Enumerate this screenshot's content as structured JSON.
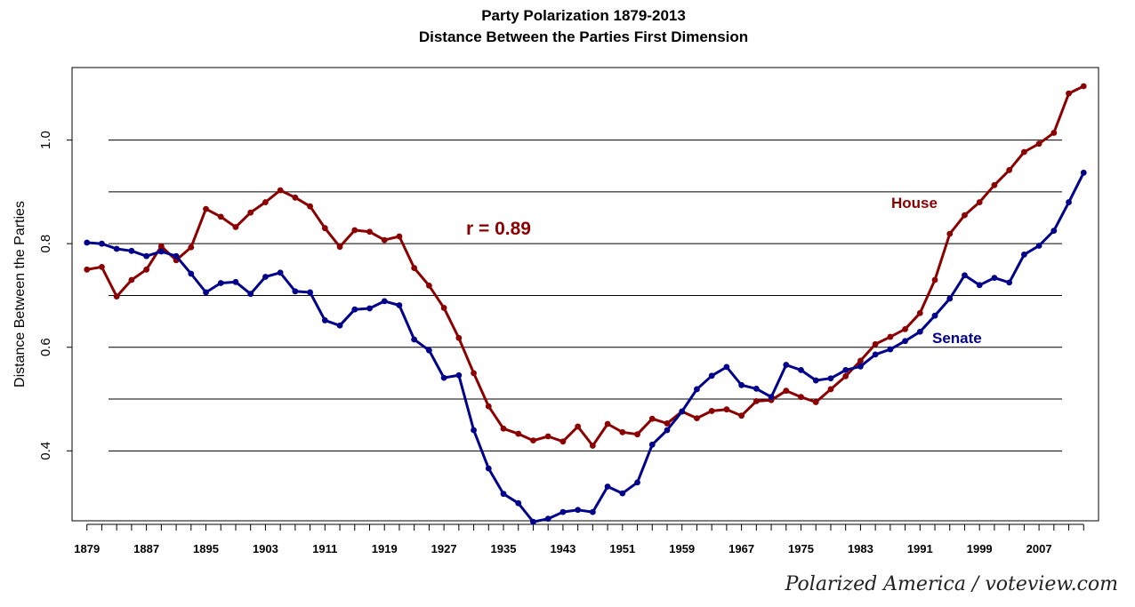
{
  "chart_data": {
    "type": "line",
    "title": "Party Polarization 1879-2013",
    "subtitle": "Distance Between the Parties First Dimension",
    "xlabel": "",
    "ylabel": "Distance Between the Parties",
    "xlim": [
      1877,
      2015
    ],
    "ylim": [
      0.265,
      1.14
    ],
    "grid": "horizontal",
    "x_ticks": [
      "1879",
      "1887",
      "1895",
      "1903",
      "1911",
      "1919",
      "1927",
      "1935",
      "1943",
      "1951",
      "1959",
      "1967",
      "1975",
      "1983",
      "1991",
      "1999",
      "2007"
    ],
    "y_ticks": [
      0.4,
      0.6,
      0.8,
      1.0
    ],
    "y_tick_labels": [
      "0.4",
      "0.6",
      "0.8",
      "1.0"
    ],
    "annotation": "r =  0.89",
    "x": [
      1879,
      1881,
      1883,
      1885,
      1887,
      1889,
      1891,
      1893,
      1895,
      1897,
      1899,
      1901,
      1903,
      1905,
      1907,
      1909,
      1911,
      1913,
      1915,
      1917,
      1919,
      1921,
      1923,
      1925,
      1927,
      1929,
      1931,
      1933,
      1935,
      1937,
      1939,
      1941,
      1943,
      1945,
      1947,
      1949,
      1951,
      1953,
      1955,
      1957,
      1959,
      1961,
      1963,
      1965,
      1967,
      1969,
      1971,
      1973,
      1975,
      1977,
      1979,
      1981,
      1983,
      1985,
      1987,
      1989,
      1991,
      1993,
      1995,
      1997,
      1999,
      2001,
      2003,
      2005,
      2007,
      2009,
      2011,
      2013
    ],
    "series": [
      {
        "name": "House",
        "color": "#8b0000",
        "values": [
          0.75,
          0.755,
          0.698,
          0.73,
          0.75,
          0.795,
          0.768,
          0.793,
          0.867,
          0.852,
          0.832,
          0.86,
          0.88,
          0.903,
          0.889,
          0.872,
          0.83,
          0.794,
          0.826,
          0.823,
          0.807,
          0.814,
          0.753,
          0.719,
          0.676,
          0.618,
          0.55,
          0.486,
          0.443,
          0.433,
          0.42,
          0.428,
          0.418,
          0.447,
          0.41,
          0.452,
          0.436,
          0.432,
          0.462,
          0.453,
          0.476,
          0.463,
          0.477,
          0.48,
          0.468,
          0.496,
          0.498,
          0.516,
          0.504,
          0.494,
          0.519,
          0.544,
          0.574,
          0.606,
          0.62,
          0.635,
          0.666,
          0.73,
          0.819,
          0.855,
          0.88,
          0.913,
          0.942,
          0.977,
          0.993,
          1.014,
          1.09,
          1.104
        ]
      },
      {
        "name": "Senate",
        "color": "#00008b",
        "values": [
          0.802,
          0.8,
          0.79,
          0.786,
          0.776,
          0.785,
          0.776,
          0.742,
          0.706,
          0.724,
          0.726,
          0.703,
          0.736,
          0.744,
          0.708,
          0.706,
          0.652,
          0.642,
          0.673,
          0.675,
          0.689,
          0.681,
          0.615,
          0.594,
          0.541,
          0.546,
          0.44,
          0.366,
          0.317,
          0.299,
          0.263,
          0.269,
          0.282,
          0.286,
          0.282,
          0.331,
          0.318,
          0.339,
          0.412,
          0.44,
          0.476,
          0.519,
          0.545,
          0.562,
          0.527,
          0.52,
          0.504,
          0.566,
          0.556,
          0.536,
          0.54,
          0.556,
          0.563,
          0.586,
          0.596,
          0.612,
          0.63,
          0.661,
          0.694,
          0.739,
          0.72,
          0.734,
          0.725,
          0.779,
          0.796,
          0.825,
          0.88,
          0.937
        ]
      }
    ]
  },
  "series_labels": {
    "house": "House",
    "senate": "Senate"
  },
  "credit": "Polarized America / voteview.com"
}
